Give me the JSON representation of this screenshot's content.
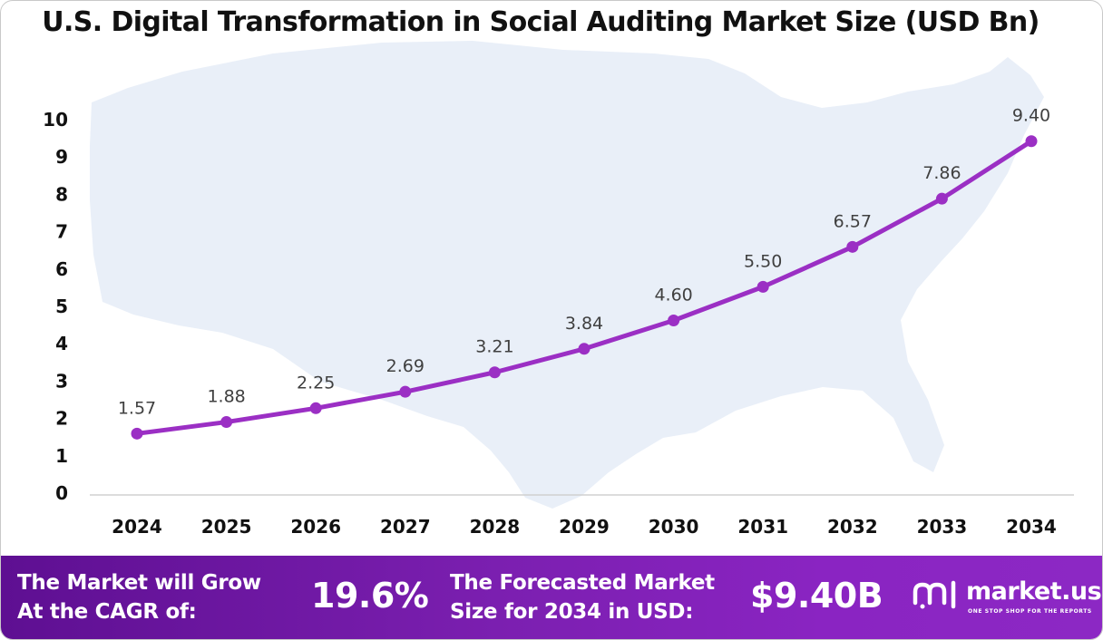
{
  "chart_data": {
    "type": "line",
    "title": "U.S. Digital Transformation in Social Auditing Market Size (USD Bn)",
    "categories": [
      "2024",
      "2025",
      "2026",
      "2027",
      "2028",
      "2029",
      "2030",
      "2031",
      "2032",
      "2033",
      "2034"
    ],
    "values": [
      1.57,
      1.88,
      2.25,
      2.69,
      3.21,
      3.84,
      4.6,
      5.5,
      6.57,
      7.86,
      9.4
    ],
    "value_labels": [
      "1.57",
      "1.88",
      "2.25",
      "2.69",
      "3.21",
      "3.84",
      "4.60",
      "5.50",
      "6.57",
      "7.86",
      "9.40"
    ],
    "y_ticks": [
      "0",
      "1",
      "2",
      "3",
      "4",
      "5",
      "6",
      "7",
      "8",
      "9",
      "10"
    ],
    "ylim": [
      0,
      10
    ],
    "xlabel": "",
    "ylabel": "",
    "grid": false,
    "line_color": "#9b2fc4",
    "background_map": "United States outline"
  },
  "footer": {
    "cagr_label_line1": "The Market will Grow",
    "cagr_label_line2": "At the CAGR of:",
    "cagr_value": "19.6%",
    "forecast_label_line1": "The Forecasted Market",
    "forecast_label_line2": "Size for 2034 in USD:",
    "forecast_value": "$9.40B"
  },
  "brand": {
    "name": "market.us",
    "tagline": "ONE STOP SHOP FOR THE REPORTS",
    "logo_icon": "market-us-logo-icon"
  },
  "colors": {
    "footer_start": "#5e0f92",
    "footer_end": "#8c28c4",
    "map_fill": "#e9eff8",
    "line": "#9b2fc4"
  }
}
